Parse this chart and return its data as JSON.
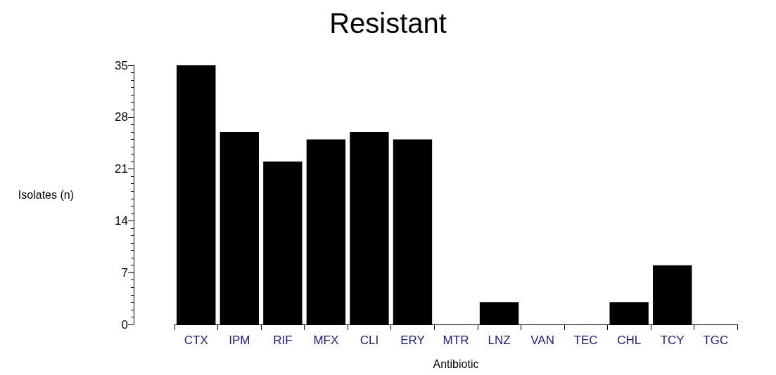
{
  "chart_data": {
    "type": "bar",
    "title": "Resistant",
    "xlabel": "Antibiotic",
    "ylabel": "Isolates (n)",
    "categories": [
      "CTX",
      "IPM",
      "RIF",
      "MFX",
      "CLI",
      "ERY",
      "MTR",
      "LNZ",
      "VAN",
      "TEC",
      "CHL",
      "TCY",
      "TGC"
    ],
    "values": [
      35,
      26,
      22,
      25,
      26,
      25,
      0,
      3,
      0,
      0,
      3,
      8,
      0
    ],
    "color": "#000000",
    "ylim": [
      0,
      35
    ],
    "yticks": [
      0,
      7,
      14,
      21,
      28,
      35
    ],
    "grid": false
  }
}
